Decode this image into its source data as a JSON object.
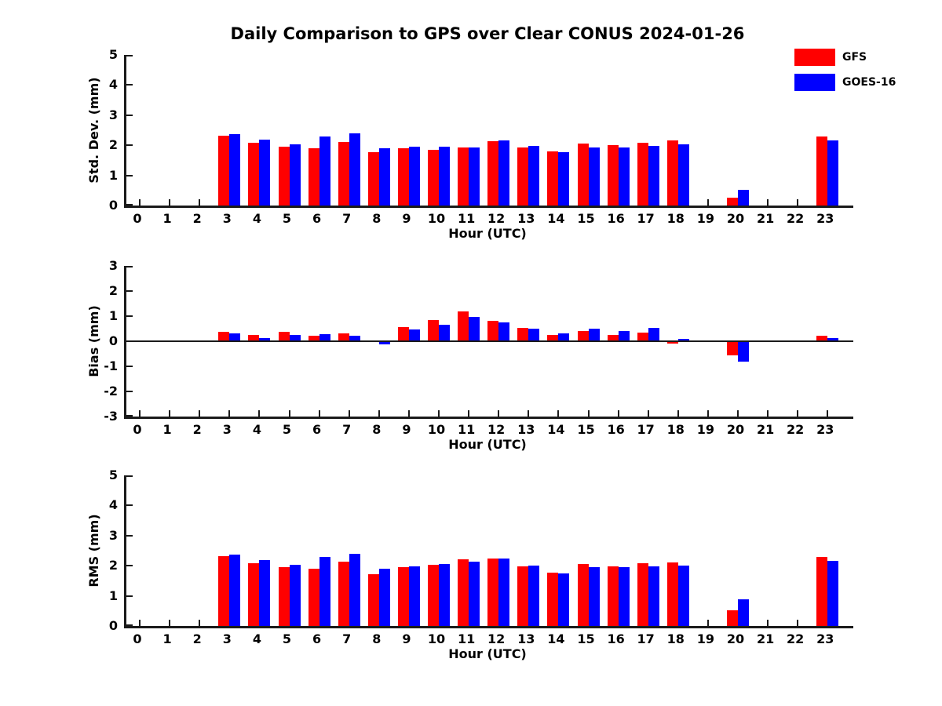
{
  "title": "Daily Comparison to GPS over Clear CONUS 2024-01-26",
  "legend": {
    "items": [
      {
        "label": "GFS",
        "color": "#ff0000"
      },
      {
        "label": "GOES-16",
        "color": "#0000ff"
      }
    ]
  },
  "colors": {
    "gfs_red": "#ff0000",
    "goes16_blue": "#0000ff",
    "axis": "#1a1a1a",
    "text": "#000000",
    "background": "#ffffff"
  },
  "chart_data": [
    {
      "type": "bar",
      "panel": "std-dev",
      "ylabel": "Std. Dev. (mm)",
      "xlabel": "Hour (UTC)",
      "ylim": [
        0,
        5
      ],
      "yticks": [
        0,
        1,
        2,
        3,
        4,
        5
      ],
      "grid": false,
      "legend_position": "top-right-outside",
      "categories": [
        0,
        1,
        2,
        3,
        4,
        5,
        6,
        7,
        8,
        9,
        10,
        11,
        12,
        13,
        14,
        15,
        16,
        17,
        18,
        19,
        20,
        21,
        22,
        23
      ],
      "series": [
        {
          "name": "GFS",
          "color": "#ff0000",
          "values": [
            null,
            null,
            null,
            2.33,
            2.08,
            1.96,
            1.9,
            2.1,
            1.76,
            1.91,
            1.86,
            1.93,
            2.14,
            1.92,
            1.79,
            2.07,
            2.01,
            2.09,
            2.17,
            null,
            0.26,
            null,
            null,
            2.3
          ]
        },
        {
          "name": "GOES-16",
          "color": "#0000ff",
          "values": [
            null,
            null,
            null,
            2.37,
            2.18,
            2.03,
            2.29,
            2.39,
            1.9,
            1.96,
            1.95,
            1.93,
            2.15,
            1.98,
            1.76,
            1.94,
            1.93,
            1.97,
            2.04,
            null,
            0.51,
            null,
            null,
            2.16
          ]
        }
      ]
    },
    {
      "type": "bar",
      "panel": "bias",
      "ylabel": "Bias (mm)",
      "xlabel": "Hour (UTC)",
      "ylim": [
        -3,
        3
      ],
      "yticks": [
        -3,
        -2,
        -1,
        0,
        1,
        2,
        3
      ],
      "zero_line": true,
      "grid": false,
      "categories": [
        0,
        1,
        2,
        3,
        4,
        5,
        6,
        7,
        8,
        9,
        10,
        11,
        12,
        13,
        14,
        15,
        16,
        17,
        18,
        19,
        20,
        21,
        22,
        23
      ],
      "series": [
        {
          "name": "GFS",
          "color": "#ff0000",
          "values": [
            null,
            null,
            null,
            0.38,
            0.26,
            0.36,
            0.23,
            0.32,
            0.03,
            0.57,
            0.83,
            1.18,
            0.82,
            0.54,
            0.26,
            0.42,
            0.26,
            0.35,
            -0.1,
            null,
            -0.55,
            null,
            null,
            0.22
          ]
        },
        {
          "name": "GOES-16",
          "color": "#0000ff",
          "values": [
            null,
            null,
            null,
            0.3,
            0.12,
            0.25,
            0.27,
            0.23,
            -0.12,
            0.47,
            0.67,
            0.96,
            0.75,
            0.5,
            0.31,
            0.5,
            0.4,
            0.53,
            0.08,
            null,
            -0.8,
            null,
            null,
            0.14
          ]
        }
      ]
    },
    {
      "type": "bar",
      "panel": "rms",
      "ylabel": "RMS (mm)",
      "xlabel": "Hour (UTC)",
      "ylim": [
        0,
        5
      ],
      "yticks": [
        0,
        1,
        2,
        3,
        4,
        5
      ],
      "grid": false,
      "categories": [
        0,
        1,
        2,
        3,
        4,
        5,
        6,
        7,
        8,
        9,
        10,
        11,
        12,
        13,
        14,
        15,
        16,
        17,
        18,
        19,
        20,
        21,
        22,
        23
      ],
      "series": [
        {
          "name": "GFS",
          "color": "#ff0000",
          "values": [
            null,
            null,
            null,
            2.33,
            2.08,
            1.96,
            1.91,
            2.13,
            1.71,
            1.96,
            2.02,
            2.22,
            2.24,
            1.97,
            1.77,
            2.06,
            1.99,
            2.09,
            2.11,
            null,
            0.53,
            null,
            null,
            2.28
          ]
        },
        {
          "name": "GOES-16",
          "color": "#0000ff",
          "values": [
            null,
            null,
            null,
            2.37,
            2.18,
            2.04,
            2.29,
            2.39,
            1.89,
            1.99,
            2.05,
            2.13,
            2.24,
            2.01,
            1.75,
            1.95,
            1.96,
            1.99,
            2.01,
            null,
            0.89,
            null,
            null,
            2.15
          ]
        }
      ]
    }
  ]
}
